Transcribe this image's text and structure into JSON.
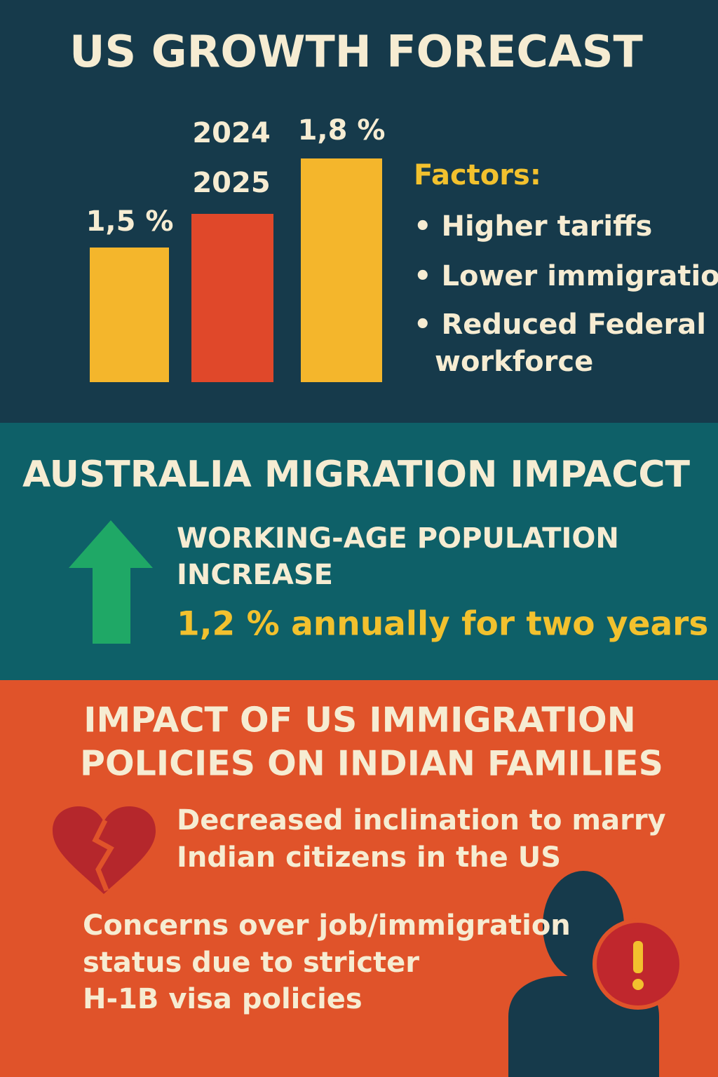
{
  "us_section": {
    "title": "US GROWTH FORECAST",
    "bar_labels": [
      "1,5 %",
      "2024",
      "2025",
      "1,8 %"
    ],
    "factors_heading": "Factors:",
    "factors": [
      "• Higher tariffs",
      "• Lower immigration",
      "• Reduced Federal",
      "workforce"
    ]
  },
  "australia_section": {
    "title": "AUSTRALIA MIGRATION IMPACCT",
    "lines": [
      "WORKING-AGE POPULATION",
      "INCREASE"
    ],
    "highlight": "1,2 % annually for two years"
  },
  "india_section": {
    "title_lines": [
      "IMPACT OF US IMMIGRATION",
      "POLICIES ON INDIAN FAMILIES"
    ],
    "point1": [
      "Decreased inclination to marry",
      "Indian citizens in the US"
    ],
    "point2": [
      "Concerns over job/immigration",
      "status due to stricter",
      "H-1B visa policies"
    ]
  }
}
